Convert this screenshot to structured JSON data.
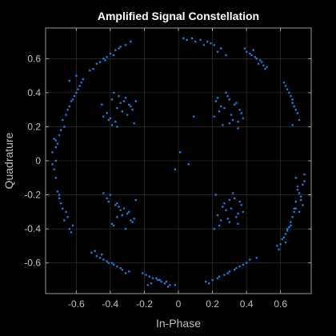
{
  "chart_data": {
    "type": "scatter",
    "title": "Amplified Signal Constellation",
    "xlabel": "In-Phase",
    "ylabel": "Quadrature",
    "xlim": [
      -0.78,
      0.78
    ],
    "ylim": [
      -0.78,
      0.78
    ],
    "xticks": [
      -0.6,
      -0.4,
      -0.2,
      0,
      0.2,
      0.4,
      0.6
    ],
    "xtick_labels": [
      "-0.6",
      "-0.4",
      "-0.2",
      "0",
      "0.2",
      "0.4",
      "0.6"
    ],
    "yticks": [
      -0.6,
      -0.4,
      -0.2,
      0,
      0.2,
      0.4,
      0.6
    ],
    "ytick_labels": [
      "-0.6",
      "-0.4",
      "-0.2",
      "0",
      "0.2",
      "0.4",
      "0.6"
    ],
    "grid": true,
    "background": "#000000",
    "point_color": "#1f77d4",
    "series": [
      {
        "x": [
          0.03,
          0.08,
          0.13,
          0.17,
          0.21,
          0.25,
          0.1,
          0.19,
          0.23,
          0.15,
          0.05,
          0.28,
          0.4,
          0.43,
          0.46,
          0.49,
          0.5,
          0.52,
          0.42,
          0.45,
          0.48,
          0.39,
          0.44,
          0.47,
          0.51,
          0.63,
          0.65,
          0.67,
          0.68,
          0.7,
          0.64,
          0.66,
          0.69,
          0.62,
          0.67,
          0.71,
          0.67,
          0.69,
          0.7,
          0.71,
          0.72,
          0.73,
          0.74,
          0.7,
          0.68,
          0.72,
          0.73,
          0.69,
          0.71,
          0.74,
          0.64,
          0.61,
          0.63,
          0.65,
          0.66,
          0.67,
          0.68,
          0.6,
          0.62,
          0.64,
          0.59,
          0.66,
          0.69,
          0.58,
          0.63,
          0.46,
          0.4,
          0.36,
          0.33,
          0.3,
          0.27,
          0.24,
          0.2,
          0.16,
          0.38,
          0.34,
          0.29,
          0.23,
          0.42,
          0.18,
          -0.02,
          -0.05,
          -0.08,
          -0.1,
          -0.12,
          -0.15,
          -0.17,
          -0.19,
          -0.21,
          -0.06,
          -0.11,
          -0.16,
          -0.13,
          -0.07,
          -0.18,
          -0.29,
          -0.34,
          -0.38,
          -0.41,
          -0.44,
          -0.46,
          -0.48,
          -0.51,
          -0.36,
          -0.42,
          -0.39,
          -0.45,
          -0.33,
          -0.49,
          -0.31,
          -0.62,
          -0.65,
          -0.68,
          -0.7,
          -0.71,
          -0.66,
          -0.64,
          -0.69,
          -0.67,
          -0.63,
          -0.7,
          -0.72,
          -0.73,
          -0.72,
          -0.74,
          -0.71,
          -0.73,
          -0.7,
          -0.72,
          -0.74,
          -0.69,
          -0.72,
          -0.67,
          -0.68,
          -0.66,
          -0.64,
          -0.61,
          -0.59,
          -0.57,
          -0.63,
          -0.6,
          -0.65,
          -0.62,
          -0.58,
          -0.56,
          -0.6,
          -0.64,
          -0.52,
          -0.48,
          -0.44,
          -0.4,
          -0.37,
          -0.34,
          -0.31,
          -0.46,
          -0.42,
          -0.38,
          -0.35,
          -0.5,
          -0.43,
          -0.28,
          -0.45,
          -0.39,
          -0.33,
          -0.4,
          -0.36,
          -0.32,
          -0.3,
          -0.26,
          -0.38,
          -0.42,
          -0.29,
          -0.35,
          -0.27,
          -0.41,
          -0.31,
          -0.36,
          -0.34,
          -0.44,
          -0.28,
          -0.37,
          -0.33,
          -0.25,
          -0.39,
          -0.4,
          -0.36,
          -0.32,
          -0.3,
          -0.26,
          -0.38,
          -0.42,
          -0.29,
          -0.35,
          -0.27,
          -0.41,
          -0.31,
          -0.36,
          -0.34,
          -0.44,
          -0.28,
          -0.37,
          -0.33,
          -0.25,
          -0.39,
          0.22,
          0.27,
          0.31,
          0.35,
          0.29,
          0.24,
          0.33,
          0.38,
          0.26,
          0.3,
          0.36,
          0.21,
          0.34,
          0.28,
          0.32,
          0.25,
          0.37,
          0.23,
          0.3,
          0.35,
          0.22,
          0.27,
          0.31,
          0.35,
          0.29,
          0.24,
          0.33,
          0.38,
          0.26,
          0.3,
          0.36,
          0.21,
          0.34,
          0.28,
          0.32,
          0.25,
          0.37,
          0.23,
          0.3,
          0.35,
          0.09,
          0.01,
          -0.02,
          0.06
        ],
        "y": [
          0.72,
          0.72,
          0.71,
          0.7,
          0.68,
          0.66,
          0.7,
          0.69,
          0.64,
          0.68,
          0.71,
          0.62,
          0.64,
          0.62,
          0.6,
          0.58,
          0.56,
          0.55,
          0.63,
          0.61,
          0.59,
          0.66,
          0.65,
          0.57,
          0.54,
          0.44,
          0.4,
          0.36,
          0.32,
          0.28,
          0.42,
          0.38,
          0.3,
          0.46,
          0.34,
          0.24,
          0.21,
          -0.1,
          -0.15,
          -0.19,
          -0.23,
          -0.26,
          -0.12,
          -0.17,
          -0.28,
          -0.21,
          -0.14,
          -0.24,
          -0.3,
          -0.08,
          -0.4,
          -0.46,
          -0.43,
          -0.39,
          -0.36,
          -0.33,
          -0.3,
          -0.49,
          -0.45,
          -0.41,
          -0.52,
          -0.38,
          -0.28,
          -0.5,
          -0.48,
          -0.57,
          -0.6,
          -0.62,
          -0.64,
          -0.65,
          -0.67,
          -0.68,
          -0.7,
          -0.71,
          -0.61,
          -0.63,
          -0.66,
          -0.69,
          -0.58,
          -0.72,
          -0.73,
          -0.73,
          -0.72,
          -0.71,
          -0.7,
          -0.69,
          -0.68,
          -0.67,
          -0.66,
          -0.74,
          -0.7,
          -0.72,
          -0.69,
          -0.71,
          -0.73,
          -0.65,
          -0.63,
          -0.61,
          -0.6,
          -0.58,
          -0.57,
          -0.56,
          -0.54,
          -0.62,
          -0.59,
          -0.6,
          -0.55,
          -0.64,
          -0.53,
          -0.66,
          -0.38,
          -0.33,
          -0.28,
          -0.22,
          -0.18,
          -0.3,
          -0.4,
          -0.25,
          -0.35,
          -0.42,
          -0.2,
          -0.1,
          -0.05,
          0.0,
          0.05,
          0.1,
          0.13,
          0.15,
          0.08,
          -0.02,
          0.18,
          0.12,
          0.2,
          0.24,
          0.27,
          0.32,
          0.38,
          0.42,
          0.46,
          0.35,
          0.4,
          0.3,
          0.36,
          0.44,
          0.48,
          0.5,
          0.47,
          0.53,
          0.57,
          0.6,
          0.63,
          0.65,
          0.67,
          0.68,
          0.58,
          0.61,
          0.62,
          0.66,
          0.54,
          0.59,
          0.7,
          0.33,
          0.36,
          0.29,
          0.25,
          0.31,
          0.35,
          0.27,
          0.22,
          0.4,
          0.28,
          0.33,
          0.38,
          0.3,
          0.24,
          0.37,
          0.2,
          0.34,
          0.26,
          0.32,
          0.23,
          0.29,
          0.35,
          0.21,
          -0.2,
          -0.25,
          -0.28,
          -0.31,
          -0.34,
          -0.38,
          -0.22,
          -0.3,
          -0.27,
          -0.36,
          -0.24,
          -0.4,
          -0.33,
          -0.29,
          -0.19,
          -0.35,
          -0.26,
          -0.32,
          -0.23,
          -0.37,
          0.35,
          0.31,
          0.27,
          0.23,
          0.38,
          0.29,
          0.33,
          0.25,
          0.21,
          0.36,
          0.3,
          0.26,
          0.34,
          0.4,
          0.24,
          0.32,
          0.28,
          0.37,
          0.22,
          0.19,
          -0.2,
          -0.25,
          -0.28,
          -0.31,
          -0.34,
          -0.38,
          -0.22,
          -0.3,
          -0.27,
          -0.36,
          -0.24,
          -0.4,
          -0.33,
          -0.29,
          -0.19,
          -0.35,
          -0.26,
          -0.32,
          -0.23,
          -0.37,
          0.26,
          0.05,
          -0.05,
          -0.02
        ]
      }
    ]
  }
}
